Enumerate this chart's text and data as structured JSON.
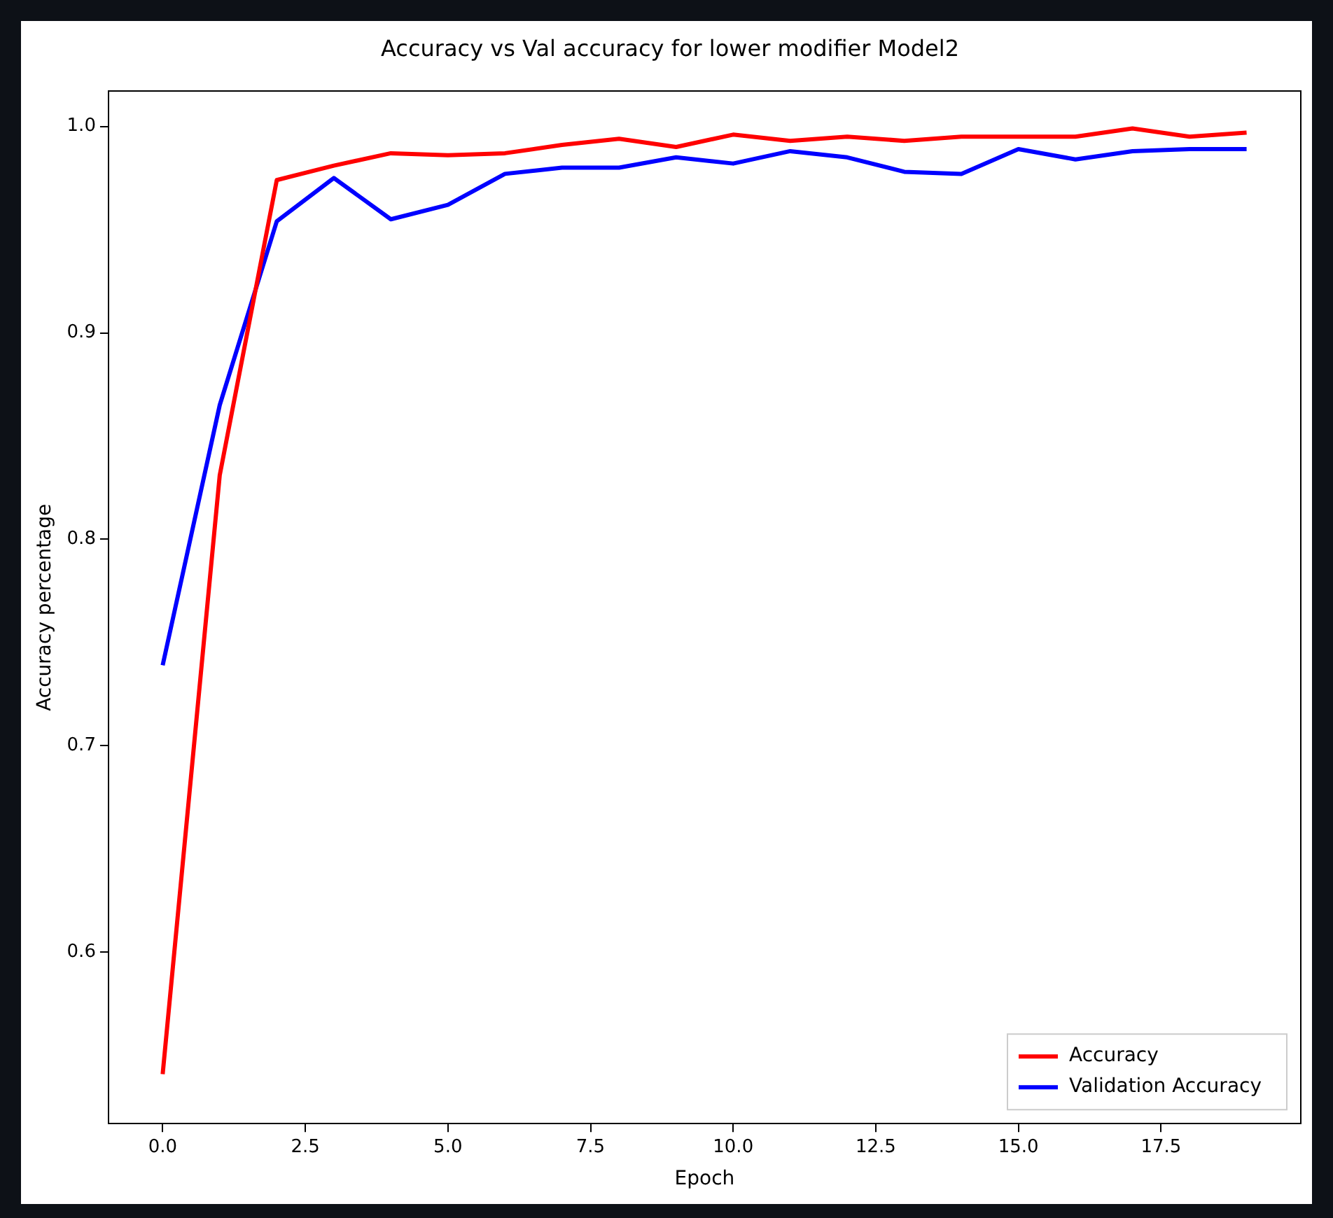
{
  "chart_data": {
    "type": "line",
    "title": "Accuracy vs Val accuracy for lower modifier Model2",
    "xlabel": "Epoch",
    "ylabel": "Accuracy percentage",
    "x": [
      0,
      1,
      2,
      3,
      4,
      5,
      6,
      7,
      8,
      9,
      10,
      11,
      12,
      13,
      14,
      15,
      16,
      17,
      18,
      19
    ],
    "series": [
      {
        "name": "Accuracy",
        "color": "#ff0000",
        "values": [
          0.541,
          0.831,
          0.974,
          0.981,
          0.987,
          0.986,
          0.987,
          0.991,
          0.994,
          0.99,
          0.996,
          0.993,
          0.995,
          0.993,
          0.995,
          0.995,
          0.995,
          0.999,
          0.995,
          0.997
        ]
      },
      {
        "name": "Validation Accuracy",
        "color": "#0000ff",
        "values": [
          0.739,
          0.865,
          0.954,
          0.975,
          0.955,
          0.962,
          0.977,
          0.98,
          0.98,
          0.985,
          0.982,
          0.988,
          0.985,
          0.978,
          0.977,
          0.989,
          0.984,
          0.988,
          0.989,
          0.989
        ]
      }
    ],
    "xlim": [
      -0.95,
      19.95
    ],
    "xticks": [
      {
        "value": 0,
        "label": "0.0"
      },
      2.5,
      {
        "value": 5,
        "label": "5.0"
      },
      7.5,
      {
        "value": 10,
        "label": "10.0"
      },
      12.5,
      {
        "value": 15,
        "label": "15.0"
      },
      17.5
    ],
    "ylim": [
      0.517,
      1.017
    ],
    "yticks": [
      0.6,
      0.7,
      0.8,
      0.9,
      {
        "value": 1,
        "label": "1.0"
      }
    ],
    "grid": false,
    "legend": "bottom right",
    "marker": "none",
    "line_style": "solid"
  }
}
